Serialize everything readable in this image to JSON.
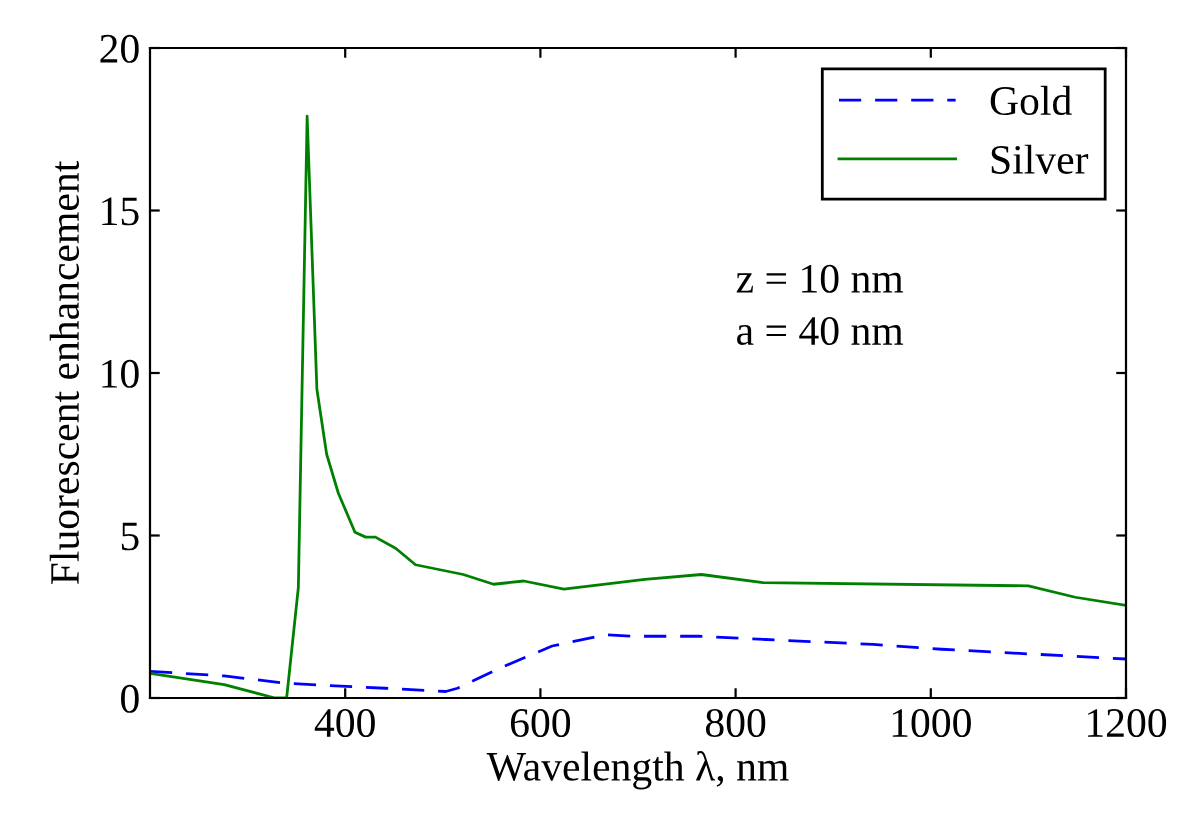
{
  "chart_data": {
    "type": "line",
    "xlabel": "Wavelength λ, nm",
    "ylabel": "Fluorescent enhancement",
    "xlim": [
      200,
      1200
    ],
    "xticks": [
      400,
      600,
      800,
      1000,
      1200
    ],
    "ylim": [
      0,
      20
    ],
    "yticks": [
      0,
      5,
      10,
      15,
      20
    ],
    "grid": false,
    "legend": "top right",
    "marker": "none",
    "annotations": [
      "z = 10 nm\na = 40 nm"
    ],
    "series": [
      {
        "name": "Gold",
        "color": "#0000ff",
        "line_style": "dashed",
        "x": [
          200,
          276,
          340,
          441,
          503,
          515,
          557,
          612,
          667,
          693,
          762,
          831,
          941,
          1011,
          1200
        ],
        "values": [
          0.82,
          0.68,
          0.45,
          0.3,
          0.2,
          0.3,
          0.9,
          1.6,
          1.95,
          1.9,
          1.9,
          1.8,
          1.65,
          1.5,
          1.2
        ]
      },
      {
        "name": "Silver",
        "color": "#008000",
        "line_style": "solid",
        "x": [
          200,
          276,
          328,
          340,
          352,
          361,
          371,
          381,
          393,
          410,
          421,
          431,
          452,
          472,
          521,
          552,
          583,
          624,
          707,
          765,
          828,
          1100,
          1148,
          1200
        ],
        "values": [
          0.76,
          0.41,
          0,
          0,
          3.4,
          17.9,
          9.5,
          7.5,
          6.3,
          5.1,
          4.95,
          4.95,
          4.6,
          4.1,
          3.8,
          3.5,
          3.6,
          3.35,
          3.65,
          3.8,
          3.55,
          3.45,
          3.1,
          2.85
        ]
      }
    ]
  }
}
